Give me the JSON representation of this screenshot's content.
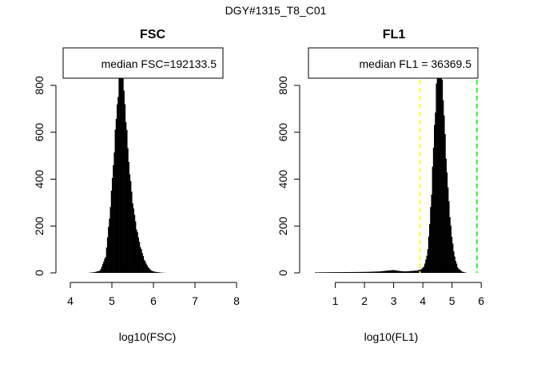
{
  "figure": {
    "title": "DGY#1315_T8_C01"
  },
  "chart_data": [
    {
      "type": "bar",
      "title": "FSC",
      "xlabel": "log10(FSC)",
      "ylabel": "",
      "xlim": [
        4,
        8
      ],
      "ylim": [
        0,
        800
      ],
      "x_ticks": [
        4,
        5,
        6,
        7,
        8
      ],
      "y_ticks": [
        0,
        200,
        400,
        600,
        800
      ],
      "legend": {
        "text": "median FSC=192133.5",
        "position": "top"
      },
      "histogram_outline": {
        "x": [
          4.42,
          4.58,
          4.72,
          4.85,
          4.95,
          5.03,
          5.1,
          5.16,
          5.2,
          5.23,
          5.26,
          5.29,
          5.32,
          5.37,
          5.43,
          5.5,
          5.58,
          5.66,
          5.72,
          5.77,
          5.82,
          5.87,
          5.93,
          6.0,
          6.1,
          6.2,
          6.32
        ],
        "count": [
          0,
          3,
          10,
          70,
          250,
          450,
          650,
          800,
          880,
          940,
          880,
          780,
          700,
          560,
          420,
          300,
          200,
          130,
          90,
          60,
          40,
          25,
          12,
          6,
          3,
          1,
          0
        ]
      }
    },
    {
      "type": "bar",
      "title": "FL1",
      "xlabel": "log10(FL1)",
      "ylabel": "",
      "xlim": [
        0.3,
        6.05
      ],
      "ylim": [
        0,
        800
      ],
      "x_ticks": [
        1,
        2,
        3,
        4,
        5,
        6
      ],
      "y_ticks": [
        0,
        200,
        400,
        600,
        800
      ],
      "legend": {
        "text": "median FL1 = 36369.5",
        "position": "top"
      },
      "vlines": [
        {
          "x": 3.9,
          "color": "#ffff33",
          "style": "dashed"
        },
        {
          "x": 5.85,
          "color": "#33ee33",
          "style": "dashed"
        }
      ],
      "histogram_outline": {
        "x": [
          0.3,
          1.0,
          2.0,
          2.5,
          2.8,
          3.0,
          3.2,
          3.4,
          3.6,
          3.8,
          3.95,
          4.05,
          4.15,
          4.22,
          4.3,
          4.38,
          4.45,
          4.52,
          4.58,
          4.65,
          4.72,
          4.8,
          4.9,
          5.0,
          5.1,
          5.2,
          5.35,
          5.5
        ],
        "count": [
          2,
          3,
          4,
          6,
          10,
          12,
          8,
          6,
          8,
          10,
          15,
          30,
          80,
          180,
          350,
          580,
          760,
          900,
          940,
          860,
          680,
          480,
          280,
          140,
          60,
          20,
          5,
          0
        ]
      }
    }
  ]
}
